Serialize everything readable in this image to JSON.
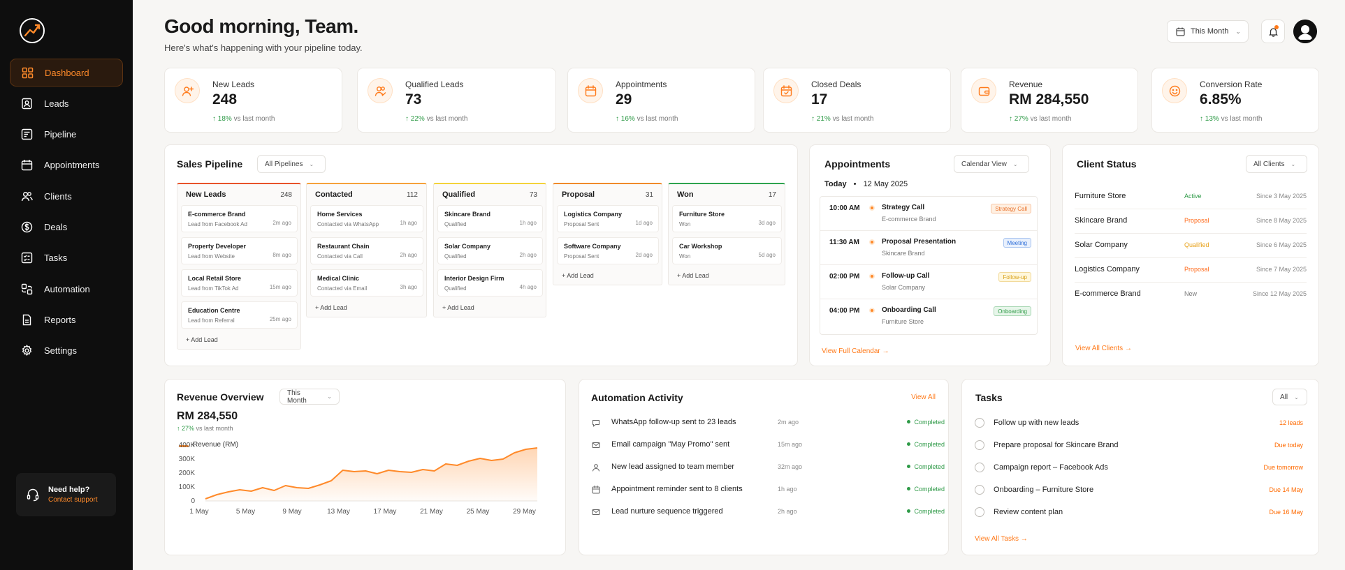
{
  "sidebar": {
    "items": [
      {
        "label": "Dashboard",
        "icon": "grid-icon",
        "active": true
      },
      {
        "label": "Leads",
        "icon": "user-icon"
      },
      {
        "label": "Pipeline",
        "icon": "pipeline-icon"
      },
      {
        "label": "Appointments",
        "icon": "calendar-icon"
      },
      {
        "label": "Clients",
        "icon": "users-icon"
      },
      {
        "label": "Deals",
        "icon": "dollar-icon"
      },
      {
        "label": "Tasks",
        "icon": "checklist-icon"
      },
      {
        "label": "Automation",
        "icon": "automation-icon"
      },
      {
        "label": "Reports",
        "icon": "report-icon"
      },
      {
        "label": "Settings",
        "icon": "gear-icon"
      }
    ],
    "help": {
      "title": "Need help?",
      "link": "Contact support"
    }
  },
  "header": {
    "greeting": "Good morning, Team.",
    "subtitle": "Here's what's happening with your pipeline today.",
    "period": "This Month"
  },
  "stats": [
    {
      "label": "New Leads",
      "value": "248",
      "delta": "18%",
      "delta_text": "vs last month",
      "icon": "user-plus-icon"
    },
    {
      "label": "Qualified Leads",
      "value": "73",
      "delta": "22%",
      "delta_text": "vs last month",
      "icon": "users-check-icon"
    },
    {
      "label": "Appointments",
      "value": "29",
      "delta": "16%",
      "delta_text": "vs last month",
      "icon": "calendar-icon"
    },
    {
      "label": "Closed Deals",
      "value": "17",
      "delta": "21%",
      "delta_text": "vs last month",
      "icon": "calendar-check-icon"
    },
    {
      "label": "Revenue",
      "value": "RM 284,550",
      "delta": "27%",
      "delta_text": "vs last month",
      "icon": "wallet-icon"
    },
    {
      "label": "Conversion Rate",
      "value": "6.85%",
      "delta": "13%",
      "delta_text": "vs last month",
      "icon": "smile-icon"
    }
  ],
  "pipeline": {
    "title": "Sales Pipeline",
    "filter": "All Pipelines",
    "add_label": "+ Add Lead",
    "columns": [
      {
        "name": "New Leads",
        "count": "248",
        "color": "#e8532a",
        "leads": [
          {
            "name": "E-commerce Brand",
            "source": "Lead from Facebook Ad",
            "time": "2m ago"
          },
          {
            "name": "Property Developer",
            "source": "Lead from Website",
            "time": "8m ago"
          },
          {
            "name": "Local Retail Store",
            "source": "Lead from TikTok Ad",
            "time": "15m ago"
          },
          {
            "name": "Education Centre",
            "source": "Lead from Referral",
            "time": "25m ago"
          }
        ]
      },
      {
        "name": "Contacted",
        "count": "112",
        "color": "#f5a13a",
        "leads": [
          {
            "name": "Home Services",
            "source": "Contacted via WhatsApp",
            "time": "1h ago"
          },
          {
            "name": "Restaurant Chain",
            "source": "Contacted via Call",
            "time": "2h ago"
          },
          {
            "name": "Medical Clinic",
            "source": "Contacted via Email",
            "time": "3h ago"
          }
        ]
      },
      {
        "name": "Qualified",
        "count": "73",
        "color": "#f3d23a",
        "leads": [
          {
            "name": "Skincare Brand",
            "source": "Qualified",
            "time": "1h ago"
          },
          {
            "name": "Solar Company",
            "source": "Qualified",
            "time": "2h ago"
          },
          {
            "name": "Interior Design Firm",
            "source": "Qualified",
            "time": "4h ago"
          }
        ]
      },
      {
        "name": "Proposal",
        "count": "31",
        "color": "#f08a2a",
        "leads": [
          {
            "name": "Logistics Company",
            "source": "Proposal Sent",
            "time": "1d ago"
          },
          {
            "name": "Software Company",
            "source": "Proposal Sent",
            "time": "2d ago"
          }
        ]
      },
      {
        "name": "Won",
        "count": "17",
        "color": "#2ea34f",
        "leads": [
          {
            "name": "Furniture Store",
            "source": "Won",
            "time": "3d ago"
          },
          {
            "name": "Car Workshop",
            "source": "Won",
            "time": "5d ago"
          }
        ]
      }
    ]
  },
  "appointments": {
    "title": "Appointments",
    "view": "Calendar View",
    "today": "Today",
    "date": "12 May 2025",
    "link": "View Full Calendar",
    "items": [
      {
        "time": "10:00 AM",
        "name": "Strategy Call",
        "client": "E-commerce Brand",
        "tag": "Strategy Call",
        "tag_color": "#e8702a",
        "tag_bg": "#fff0e2"
      },
      {
        "time": "11:30 AM",
        "name": "Proposal Presentation",
        "client": "Skincare Brand",
        "tag": "Meeting",
        "tag_color": "#2f6fd8",
        "tag_bg": "#e8f0fd"
      },
      {
        "time": "02:00 PM",
        "name": "Follow-up Call",
        "client": "Solar Company",
        "tag": "Follow-up",
        "tag_color": "#d9a21b",
        "tag_bg": "#fff7dc"
      },
      {
        "time": "04:00 PM",
        "name": "Onboarding Call",
        "client": "Furniture Store",
        "tag": "Onboarding",
        "tag_color": "#2e9a47",
        "tag_bg": "#e7f6ea"
      }
    ]
  },
  "clients": {
    "title": "Client Status",
    "filter": "All Clients",
    "link": "View All Clients",
    "items": [
      {
        "name": "Furniture Store",
        "status": "Active",
        "status_color": "#2e9a47",
        "since": "Since 3 May 2025"
      },
      {
        "name": "Skincare Brand",
        "status": "Proposal",
        "status_color": "#ff6a1a",
        "since": "Since 8 May 2025"
      },
      {
        "name": "Solar Company",
        "status": "Qualified",
        "status_color": "#e8a21b",
        "since": "Since 6 May 2025"
      },
      {
        "name": "Logistics Company",
        "status": "Proposal",
        "status_color": "#ff6a1a",
        "since": "Since 7 May 2025"
      },
      {
        "name": "E-commerce Brand",
        "status": "New",
        "status_color": "#777777",
        "since": "Since 12 May 2025"
      }
    ]
  },
  "revenue": {
    "title": "Revenue Overview",
    "period": "This Month",
    "value": "RM 284,550",
    "delta": "27%",
    "delta_text": "vs last month"
  },
  "chart_data": {
    "type": "area",
    "series": [
      {
        "name": "Revenue (RM)",
        "color": "#ff8a2a"
      }
    ],
    "x_ticks": [
      "1 May",
      "5 May",
      "9 May",
      "13 May",
      "17 May",
      "21 May",
      "25 May",
      "29 May"
    ],
    "y_ticks": [
      "0",
      "100K",
      "200K",
      "300K",
      "400K"
    ],
    "ylim": [
      0,
      400000
    ],
    "x": [
      1,
      2,
      3,
      4,
      5,
      6,
      7,
      8,
      9,
      10,
      11,
      12,
      13,
      14,
      15,
      16,
      17,
      18,
      19,
      20,
      21,
      22,
      23,
      24,
      25,
      26,
      27,
      28,
      29,
      30
    ],
    "values": [
      15000,
      45000,
      65000,
      80000,
      70000,
      95000,
      75000,
      110000,
      95000,
      90000,
      115000,
      145000,
      220000,
      210000,
      215000,
      195000,
      220000,
      210000,
      205000,
      225000,
      215000,
      265000,
      255000,
      285000,
      305000,
      290000,
      300000,
      345000,
      370000,
      380000
    ],
    "legend": "top-left",
    "grid": false
  },
  "automation": {
    "title": "Automation Activity",
    "link": "View All",
    "items": [
      {
        "text": "WhatsApp follow-up sent to 23 leads",
        "time": "2m ago",
        "status": "Completed",
        "icon": "chat-icon"
      },
      {
        "text": "Email campaign \"May Promo\" sent",
        "time": "15m ago",
        "status": "Completed",
        "icon": "mail-icon"
      },
      {
        "text": "New lead assigned to team member",
        "time": "32m ago",
        "status": "Completed",
        "icon": "user-icon"
      },
      {
        "text": "Appointment reminder sent to 8 clients",
        "time": "1h ago",
        "status": "Completed",
        "icon": "calendar-icon"
      },
      {
        "text": "Lead nurture sequence triggered",
        "time": "2h ago",
        "status": "Completed",
        "icon": "mail-icon"
      }
    ]
  },
  "tasks": {
    "title": "Tasks",
    "filter": "All",
    "link": "View All Tasks",
    "items": [
      {
        "text": "Follow up with new leads",
        "due": "12 leads"
      },
      {
        "text": "Prepare proposal for Skincare Brand",
        "due": "Due today"
      },
      {
        "text": "Campaign report – Facebook Ads",
        "due": "Due tomorrow"
      },
      {
        "text": "Onboarding – Furniture Store",
        "due": "Due 14 May"
      },
      {
        "text": "Review content plan",
        "due": "Due 16 May"
      }
    ]
  }
}
